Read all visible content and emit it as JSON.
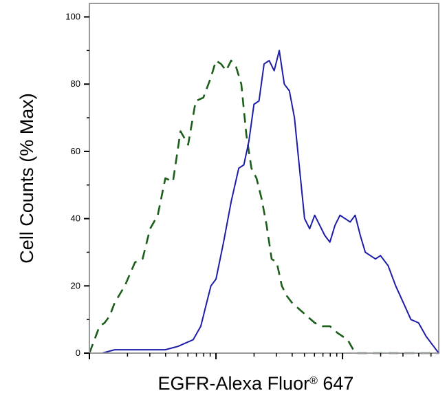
{
  "chart_data": {
    "type": "line",
    "title": "",
    "xlabel": "EGFR-Alexa Fluor",
    "xlabel_superscript": "®",
    "xlabel_suffix": " 647",
    "ylabel": "Cell Counts (% Max)",
    "x_scale": "log",
    "x_range_decades": [
      0,
      2.76
    ],
    "ylim": [
      0,
      104
    ],
    "y_ticks": [
      0,
      20,
      40,
      60,
      80,
      100
    ],
    "y_tick_labels": [
      "0",
      "20",
      "40",
      "60",
      "80",
      "100"
    ],
    "grid": false,
    "legend": "none",
    "series": [
      {
        "style": "dashed",
        "color": "#1a5e1a",
        "x": [
          0.0,
          0.04,
          0.08,
          0.12,
          0.16,
          0.2,
          0.28,
          0.36,
          0.42,
          0.48,
          0.54,
          0.6,
          0.66,
          0.72,
          0.78,
          0.84,
          0.9,
          0.96,
          1.0,
          1.04,
          1.08,
          1.12,
          1.16,
          1.2,
          1.24,
          1.28,
          1.32,
          1.36,
          1.4,
          1.44,
          1.48,
          1.52,
          1.56,
          1.6,
          1.66,
          1.72,
          1.78,
          1.84,
          1.9,
          1.96,
          2.04,
          2.1,
          2.16,
          2.2,
          2.4,
          2.6,
          2.76
        ],
        "y": [
          0,
          4,
          8,
          9,
          11,
          15,
          20,
          27,
          28,
          37,
          41,
          52,
          51,
          66,
          62,
          75,
          76,
          82,
          87,
          86,
          84,
          87,
          85,
          80,
          65,
          55,
          52,
          46,
          38,
          28,
          27,
          20,
          17,
          15,
          13,
          11,
          9,
          8,
          8,
          6,
          4,
          0,
          0,
          0,
          0,
          0,
          0
        ]
      },
      {
        "style": "solid",
        "color": "#1c1ca8",
        "x": [
          0.0,
          0.1,
          0.2,
          0.3,
          0.4,
          0.5,
          0.6,
          0.7,
          0.76,
          0.82,
          0.88,
          0.92,
          0.96,
          1.0,
          1.06,
          1.12,
          1.18,
          1.22,
          1.26,
          1.3,
          1.34,
          1.38,
          1.42,
          1.46,
          1.5,
          1.54,
          1.58,
          1.62,
          1.66,
          1.7,
          1.74,
          1.78,
          1.82,
          1.86,
          1.9,
          1.94,
          1.98,
          2.02,
          2.06,
          2.1,
          2.14,
          2.18,
          2.22,
          2.26,
          2.3,
          2.36,
          2.42,
          2.48,
          2.54,
          2.6,
          2.66,
          2.72,
          2.76
        ],
        "y": [
          0,
          0,
          1,
          1,
          1,
          1,
          1,
          2,
          3,
          4,
          8,
          14,
          20,
          22,
          33,
          45,
          55,
          56,
          63,
          74,
          75,
          86,
          87,
          84,
          90,
          80,
          78,
          70,
          55,
          40,
          37,
          41,
          38,
          35,
          33,
          38,
          41,
          40,
          39,
          41,
          35,
          30,
          29,
          28,
          29,
          26,
          20,
          15,
          10,
          9,
          5,
          2,
          0
        ]
      }
    ]
  }
}
